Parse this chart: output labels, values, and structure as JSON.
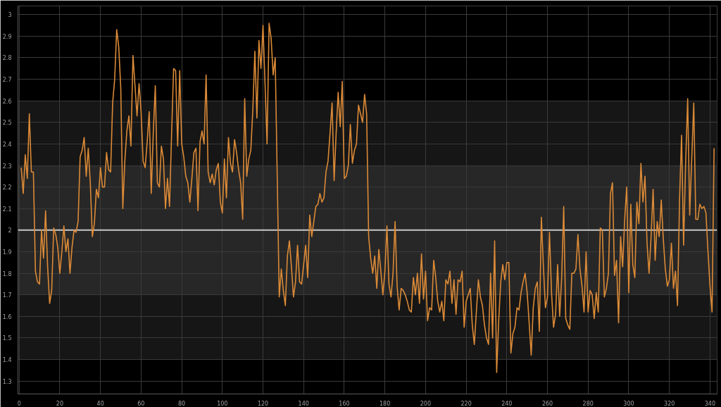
{
  "chart_data": {
    "type": "line",
    "x": [
      1,
      2,
      3,
      4,
      5,
      6,
      7,
      8,
      9,
      10,
      11,
      12,
      13,
      14,
      15,
      16,
      17,
      18,
      19,
      20,
      21,
      22,
      23,
      24,
      25,
      26,
      27,
      28,
      29,
      30,
      31,
      32,
      33,
      34,
      35,
      36,
      37,
      38,
      39,
      40,
      41,
      42,
      43,
      44,
      45,
      46,
      47,
      48,
      49,
      50,
      51,
      52,
      53,
      54,
      55,
      56,
      57,
      58,
      59,
      60,
      61,
      62,
      63,
      64,
      65,
      66,
      67,
      68,
      69,
      70,
      71,
      72,
      73,
      74,
      75,
      76,
      77,
      78,
      79,
      80,
      81,
      82,
      83,
      84,
      85,
      86,
      87,
      88,
      89,
      90,
      91,
      92,
      93,
      94,
      95,
      96,
      97,
      98,
      99,
      100,
      101,
      102,
      103,
      104,
      105,
      106,
      107,
      108,
      109,
      110,
      111,
      112,
      113,
      114,
      115,
      116,
      117,
      118,
      119,
      120,
      121,
      122,
      123,
      124,
      125,
      126,
      127,
      128,
      129,
      130,
      131,
      132,
      133,
      134,
      135,
      136,
      137,
      138,
      139,
      140,
      141,
      142,
      143,
      144,
      145,
      146,
      147,
      148,
      149,
      150,
      151,
      152,
      153,
      154,
      155,
      156,
      157,
      158,
      159,
      160,
      161,
      162,
      163,
      164,
      165,
      166,
      167,
      168,
      169,
      170,
      171,
      172,
      173,
      174,
      175,
      176,
      177,
      178,
      179,
      180,
      181,
      182,
      183,
      184,
      185,
      186,
      187,
      188,
      189,
      190,
      191,
      192,
      193,
      194,
      195,
      196,
      197,
      198,
      199,
      200,
      201,
      202,
      203,
      204,
      205,
      206,
      207,
      208,
      209,
      210,
      211,
      212,
      213,
      214,
      215,
      216,
      217,
      218,
      219,
      220,
      221,
      222,
      223,
      224,
      225,
      226,
      227,
      228,
      229,
      230,
      231,
      232,
      233,
      234,
      235,
      236,
      237,
      238,
      239,
      240,
      241,
      242,
      243,
      244,
      245,
      246,
      247,
      248,
      249,
      250,
      251,
      252,
      253,
      254,
      255,
      256,
      257,
      258,
      259,
      260,
      261,
      262,
      263,
      264,
      265,
      266,
      267,
      268,
      269,
      270,
      271,
      272,
      273,
      274,
      275,
      276,
      277,
      278,
      279,
      280,
      281,
      282,
      283,
      284,
      285,
      286,
      287,
      288,
      289,
      290,
      291,
      292,
      293,
      294,
      295,
      296,
      297,
      298,
      299,
      300,
      301,
      302,
      303,
      304,
      305,
      306,
      307,
      308,
      309,
      310,
      311,
      312,
      313,
      314,
      315,
      316,
      317,
      318,
      319,
      320,
      321,
      322,
      323,
      324,
      325,
      326,
      327,
      328,
      329,
      330,
      331,
      332,
      333,
      334,
      335,
      336,
      337,
      338,
      339,
      340,
      341,
      342
    ],
    "series": [
      {
        "color": "#db8a37",
        "values": [
          2.29,
          2.17,
          2.35,
          2.24,
          2.54,
          2.27,
          2.27,
          1.81,
          1.76,
          1.75,
          2.0,
          1.87,
          2.09,
          1.83,
          1.66,
          1.72,
          2.01,
          1.98,
          1.92,
          1.8,
          1.9,
          2.02,
          1.9,
          1.96,
          1.8,
          1.92,
          2.0,
          1.99,
          2.04,
          2.34,
          2.37,
          2.43,
          2.25,
          2.38,
          2.22,
          1.97,
          2.03,
          2.19,
          2.15,
          2.29,
          2.2,
          2.2,
          2.36,
          2.28,
          2.27,
          2.59,
          2.7,
          2.93,
          2.85,
          2.66,
          2.1,
          2.32,
          2.46,
          2.53,
          2.39,
          2.81,
          2.67,
          2.53,
          2.68,
          2.55,
          2.32,
          2.29,
          2.41,
          2.55,
          2.17,
          2.45,
          2.67,
          2.22,
          2.2,
          2.39,
          2.33,
          2.1,
          2.24,
          2.11,
          2.44,
          2.75,
          2.74,
          2.39,
          2.74,
          2.4,
          2.34,
          2.25,
          2.22,
          2.13,
          2.24,
          2.36,
          2.38,
          2.09,
          2.41,
          2.46,
          2.4,
          2.72,
          2.27,
          2.22,
          2.26,
          2.21,
          2.28,
          2.31,
          2.13,
          2.08,
          2.33,
          2.15,
          2.43,
          2.31,
          2.27,
          2.42,
          2.36,
          2.28,
          2.22,
          2.05,
          2.61,
          2.25,
          2.33,
          2.37,
          2.56,
          2.83,
          2.52,
          2.88,
          2.75,
          2.95,
          2.68,
          2.4,
          2.96,
          2.89,
          2.72,
          2.8,
          2.25,
          1.69,
          1.82,
          1.72,
          1.65,
          1.88,
          1.95,
          1.83,
          1.69,
          1.76,
          1.93,
          1.76,
          1.75,
          1.84,
          1.93,
          1.78,
          2.07,
          1.97,
          2.04,
          2.11,
          2.12,
          2.17,
          2.13,
          2.15,
          2.27,
          2.32,
          2.45,
          2.59,
          2.23,
          2.45,
          2.64,
          2.48,
          2.69,
          2.24,
          2.25,
          2.3,
          2.49,
          2.31,
          2.37,
          2.4,
          2.58,
          2.54,
          2.5,
          2.63,
          2.54,
          1.97,
          1.87,
          1.8,
          1.88,
          1.73,
          1.91,
          1.81,
          1.7,
          1.81,
          2.02,
          1.75,
          1.69,
          1.8,
          2.04,
          1.74,
          1.63,
          1.73,
          1.72,
          1.7,
          1.67,
          1.63,
          1.62,
          1.78,
          1.7,
          1.8,
          1.66,
          1.89,
          1.68,
          1.81,
          1.58,
          1.64,
          1.63,
          1.86,
          1.78,
          1.67,
          1.62,
          1.67,
          1.58,
          1.77,
          1.75,
          1.81,
          1.66,
          1.77,
          1.61,
          1.77,
          1.76,
          1.81,
          1.55,
          1.67,
          1.7,
          1.73,
          1.56,
          1.47,
          1.62,
          1.77,
          1.69,
          1.65,
          1.56,
          1.5,
          1.47,
          1.8,
          1.5,
          1.95,
          1.34,
          1.58,
          1.76,
          1.84,
          1.77,
          1.85,
          1.85,
          1.43,
          1.52,
          1.55,
          1.64,
          1.63,
          1.71,
          1.76,
          1.8,
          1.71,
          1.57,
          1.42,
          1.64,
          1.73,
          1.76,
          1.53,
          2.06,
          1.83,
          1.64,
          1.69,
          1.99,
          1.71,
          1.55,
          1.61,
          1.84,
          1.6,
          1.78,
          2.11,
          1.59,
          1.56,
          1.54,
          1.8,
          1.8,
          1.82,
          1.98,
          1.82,
          1.74,
          1.62,
          1.9,
          1.62,
          1.72,
          1.7,
          1.59,
          1.71,
          1.62,
          2.01,
          2.0,
          1.69,
          1.73,
          1.8,
          2.17,
          2.22,
          1.79,
          1.86,
          1.57,
          1.97,
          1.83,
          2.05,
          2.2,
          1.71,
          2.12,
          1.84,
          1.78,
          2.13,
          2.03,
          2.31,
          2.13,
          2.25,
          1.94,
          1.8,
          1.97,
          2.19,
          1.86,
          2.04,
          1.97,
          2.14,
          1.96,
          1.82,
          1.74,
          1.77,
          1.94,
          1.73,
          1.81,
          1.65,
          2.14,
          2.44,
          1.93,
          2.31,
          2.61,
          2.07,
          2.33,
          2.59,
          2.05,
          2.05,
          2.12,
          2.1,
          2.11,
          2.08,
          1.9,
          1.74,
          1.62,
          2.38
        ]
      }
    ],
    "xlim": [
      -0.6,
      343.5
    ],
    "ylim": [
      1.24,
      3.04
    ],
    "xticks": [
      0,
      20,
      40,
      60,
      80,
      100,
      120,
      140,
      160,
      180,
      200,
      220,
      240,
      260,
      280,
      300,
      320,
      340
    ],
    "yticks": [
      1.3,
      1.4,
      1.5,
      1.6,
      1.7,
      1.8,
      1.9,
      2,
      2.1,
      2.2,
      2.3,
      2.4,
      2.5,
      2.6,
      2.7,
      2.8,
      2.9,
      3
    ],
    "grid": true,
    "bands": [
      {
        "axis": "y",
        "from": 1.4,
        "to": 2.6,
        "color": "#161616"
      },
      {
        "axis": "y",
        "from": 1.7,
        "to": 2.3,
        "color": "#272727"
      }
    ],
    "ref_lines": [
      {
        "axis": "y",
        "value": 2,
        "color": "#c8c8c8"
      }
    ]
  }
}
